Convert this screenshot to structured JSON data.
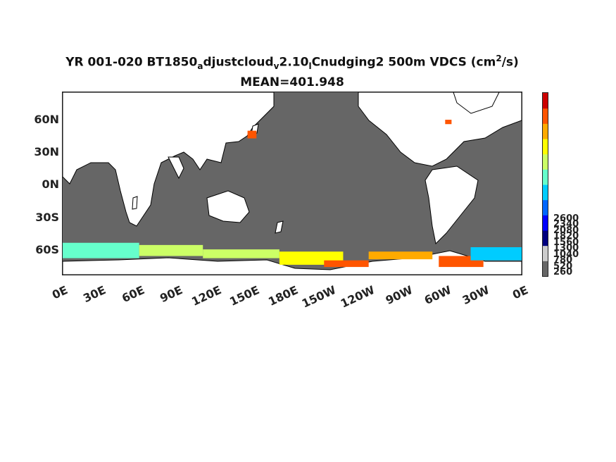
{
  "title": {
    "line1_a": "YR 001-020 BT1850",
    "line1_sub_a": "a",
    "line1_b": "djustcloud",
    "line1_sub_b": "v",
    "line1_c": "2.10",
    "line1_sub_c": "l",
    "line1_d": "Cnudging2 500m VDCS (cm",
    "line1_sup": "2",
    "line1_e": "/s)",
    "line2": "MEAN=401.948"
  },
  "map": {
    "projection": "equirectangular",
    "lon_range": [
      0,
      360
    ],
    "lat_range": [
      -79,
      87
    ],
    "land_color": "#ffffff",
    "ocean_default_color": "#666666",
    "coastline_color": "#000000"
  },
  "axes": {
    "y_ticks": [
      "60N",
      "30N",
      "0N",
      "30S",
      "60S"
    ],
    "x_ticks": [
      "0E",
      "30E",
      "60E",
      "90E",
      "120E",
      "150E",
      "180E",
      "150W",
      "120W",
      "90W",
      "60W",
      "30W",
      "0E"
    ]
  },
  "colorbar": {
    "colors": [
      "#666666",
      "#cccccc",
      "#00007f",
      "#0000ff",
      "#0066ff",
      "#00ccff",
      "#66ffcc",
      "#ccff66",
      "#ffff00",
      "#ffaa00",
      "#ff5500",
      "#cc0000"
    ],
    "tick_labels": [
      "260",
      "520",
      "780",
      "1040",
      "1300",
      "1560",
      "1820",
      "2080",
      "2340",
      "2600"
    ]
  },
  "chart_data": {
    "type": "heatmap",
    "variable": "VDCS",
    "units": "cm^2/s",
    "depth": "500m",
    "mean": 401.948,
    "regions": [
      {
        "lon": [
          0,
          60
        ],
        "lat": [
          -64,
          -50
        ],
        "value": 1500
      },
      {
        "lon": [
          60,
          110
        ],
        "lat": [
          -62,
          -52
        ],
        "value": 1800
      },
      {
        "lon": [
          110,
          170
        ],
        "lat": [
          -64,
          -56
        ],
        "value": 1900
      },
      {
        "lon": [
          170,
          220
        ],
        "lat": [
          -70,
          -58
        ],
        "value": 2100
      },
      {
        "lon": [
          205,
          240
        ],
        "lat": [
          -72,
          -66
        ],
        "value": 2500
      },
      {
        "lon": [
          240,
          290
        ],
        "lat": [
          -65,
          -58
        ],
        "value": 2200
      },
      {
        "lon": [
          295,
          330
        ],
        "lat": [
          -72,
          -62
        ],
        "value": 2400
      },
      {
        "lon": [
          320,
          360
        ],
        "lat": [
          -66,
          -54
        ],
        "value": 1300
      },
      {
        "lon": [
          145,
          152
        ],
        "lat": [
          45,
          52
        ],
        "value": 2600
      },
      {
        "lon": [
          300,
          305
        ],
        "lat": [
          58,
          62
        ],
        "value": 2600
      }
    ]
  }
}
